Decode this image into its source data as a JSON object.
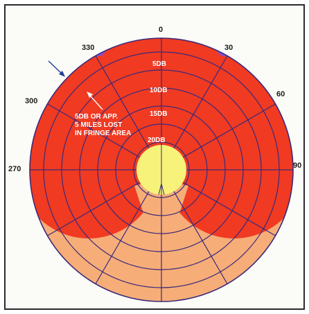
{
  "diagram": {
    "angle_labels": [
      {
        "id": "0",
        "text": "0"
      },
      {
        "id": "30",
        "text": "30"
      },
      {
        "id": "60",
        "text": "60"
      },
      {
        "id": "90",
        "text": "90"
      },
      {
        "id": "270",
        "text": "270"
      },
      {
        "id": "300",
        "text": "300"
      },
      {
        "id": "330",
        "text": "330"
      }
    ],
    "ring_labels": [
      "5DB",
      "10DB",
      "15DB",
      "20DB"
    ],
    "annotation": [
      "5DB OR APP.",
      "5 MILES LOST",
      "IN FRINGE AREA"
    ],
    "colors": {
      "outer_region": "#8e4fc0",
      "pattern": "#f03a22",
      "lower_fill": "#f6ad78",
      "center": "#f6f27a",
      "grid": "#3a2a7a"
    }
  }
}
